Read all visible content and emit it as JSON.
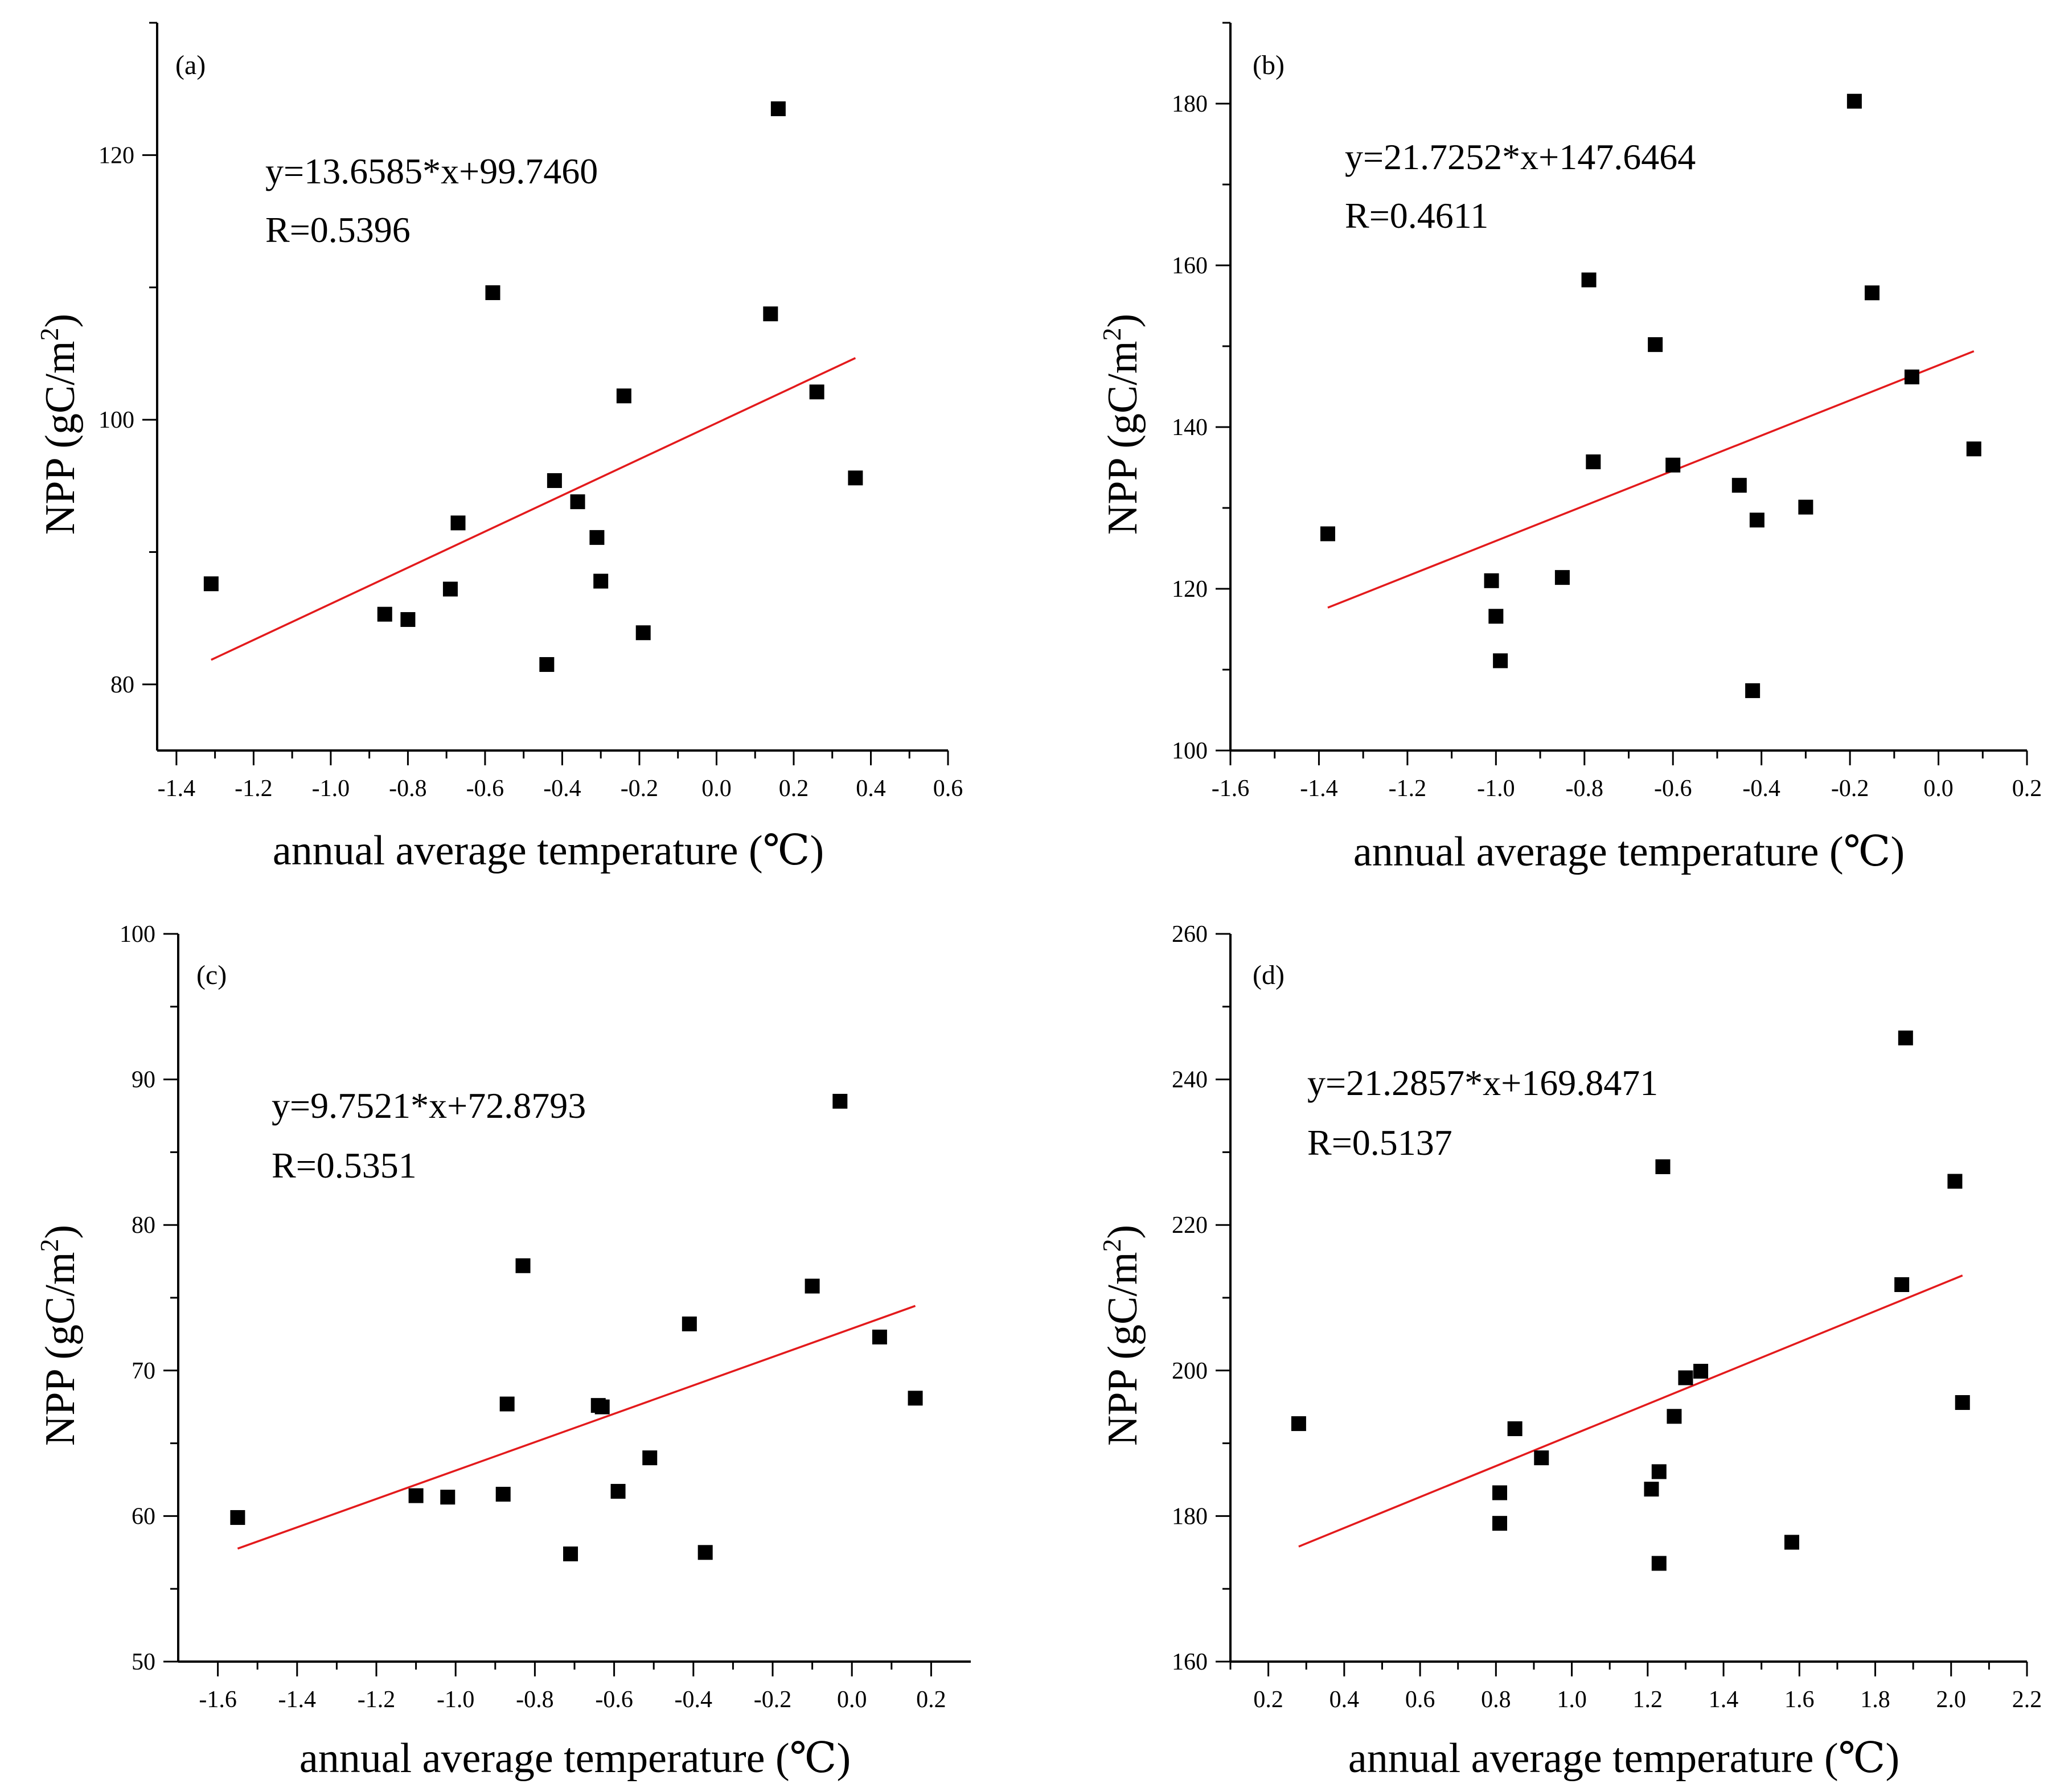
{
  "chart_data": [
    {
      "type": "scatter",
      "panel": "(a)",
      "xlabel": "annual average temperature (℃)",
      "ylabel": "NPP (gC/m2)",
      "ylabel_base": "NPP (gC/m",
      "ylabel_sup": "2",
      "ylabel_close": ")",
      "xlim": [
        -1.45,
        0.6
      ],
      "ylim": [
        75,
        130
      ],
      "xticks": [
        -1.4,
        -1.2,
        -1.0,
        -0.8,
        -0.6,
        -0.4,
        -0.2,
        0.0,
        0.2,
        0.4,
        0.6
      ],
      "xtick_labels": [
        "-1.4",
        "-1.2",
        "-1.0",
        "-0.8",
        "-0.6",
        "-0.4",
        "-0.2",
        "0.0",
        "0.2",
        "0.4",
        "0.6"
      ],
      "yticks": [
        80,
        100,
        120
      ],
      "ytick_labels": [
        "80",
        "100",
        "120"
      ],
      "equation": "y=13.6585*x+99.7460",
      "r_text": "R=0.5396",
      "fit": {
        "slope": 13.6585,
        "intercept": 99.746,
        "x_range": [
          -1.31,
          0.36
        ]
      },
      "points": [
        [
          -1.31,
          87.6
        ],
        [
          -0.86,
          85.3
        ],
        [
          -0.8,
          84.9
        ],
        [
          -0.69,
          87.2
        ],
        [
          -0.67,
          92.2
        ],
        [
          -0.58,
          109.6
        ],
        [
          -0.44,
          81.5
        ],
        [
          -0.42,
          95.4
        ],
        [
          -0.36,
          93.8
        ],
        [
          -0.31,
          91.1
        ],
        [
          -0.3,
          87.8
        ],
        [
          -0.24,
          101.8
        ],
        [
          -0.19,
          83.9
        ],
        [
          0.14,
          108.0
        ],
        [
          0.16,
          123.5
        ],
        [
          0.26,
          102.1
        ],
        [
          0.36,
          95.6
        ]
      ]
    },
    {
      "type": "scatter",
      "panel": "(b)",
      "xlabel": "annual average temperature (℃)",
      "ylabel": "NPP (gC/m2)",
      "ylabel_base": "NPP (gC/m",
      "ylabel_sup": "2",
      "ylabel_close": ")",
      "xlim": [
        -1.6,
        0.2
      ],
      "ylim": [
        100,
        190
      ],
      "xticks": [
        -1.6,
        -1.4,
        -1.2,
        -1.0,
        -0.8,
        -0.6,
        -0.4,
        -0.2,
        0.0,
        0.2
      ],
      "xtick_labels": [
        "-1.6",
        "-1.4",
        "-1.2",
        "-1.0",
        "-0.8",
        "-0.6",
        "-0.4",
        "-0.2",
        "0.0",
        "0.2"
      ],
      "yticks": [
        100,
        120,
        140,
        160,
        180
      ],
      "ytick_labels": [
        "100",
        "120",
        "140",
        "160",
        "180"
      ],
      "equation": "y=21.7252*x+147.6464",
      "r_text": "R=0.4611",
      "fit": {
        "slope": 21.7252,
        "intercept": 147.6464,
        "x_range": [
          -1.38,
          0.08
        ]
      },
      "points": [
        [
          -1.38,
          126.8
        ],
        [
          -1.01,
          121.0
        ],
        [
          -1.0,
          116.6
        ],
        [
          -0.99,
          111.1
        ],
        [
          -0.85,
          121.4
        ],
        [
          -0.79,
          158.2
        ],
        [
          -0.78,
          135.7
        ],
        [
          -0.64,
          150.2
        ],
        [
          -0.6,
          135.3
        ],
        [
          -0.45,
          132.8
        ],
        [
          -0.42,
          107.4
        ],
        [
          -0.41,
          128.5
        ],
        [
          -0.3,
          130.1
        ],
        [
          -0.19,
          180.3
        ],
        [
          -0.15,
          156.6
        ],
        [
          -0.06,
          146.2
        ],
        [
          0.08,
          137.3
        ]
      ]
    },
    {
      "type": "scatter",
      "panel": "(c)",
      "xlabel": "annual average temperature (℃)",
      "ylabel": "NPP (gC/m2)",
      "ylabel_base": "NPP (gC/m",
      "ylabel_sup": "2",
      "ylabel_close": ")",
      "xlim": [
        -1.7,
        0.3
      ],
      "ylim": [
        50,
        100
      ],
      "xticks": [
        -1.6,
        -1.4,
        -1.2,
        -1.0,
        -0.8,
        -0.6,
        -0.4,
        -0.2,
        0.0,
        0.2
      ],
      "xtick_labels": [
        "-1.6",
        "-1.4",
        "-1.2",
        "-1.0",
        "-0.8",
        "-0.6",
        "-0.4",
        "-0.2",
        "0.0",
        "0.2"
      ],
      "yticks": [
        50,
        60,
        70,
        80,
        90,
        100
      ],
      "ytick_labels": [
        "50",
        "60",
        "70",
        "80",
        "90",
        "100"
      ],
      "equation": "y=9.7521*x+72.8793",
      "r_text": "R=0.5351",
      "fit": {
        "slope": 9.7521,
        "intercept": 72.8793,
        "x_range": [
          -1.55,
          0.16
        ]
      },
      "points": [
        [
          -1.55,
          59.9
        ],
        [
          -1.1,
          61.4
        ],
        [
          -1.02,
          61.3
        ],
        [
          -0.88,
          61.5
        ],
        [
          -0.87,
          67.7
        ],
        [
          -0.83,
          77.2
        ],
        [
          -0.71,
          57.4
        ],
        [
          -0.64,
          67.6
        ],
        [
          -0.63,
          67.5
        ],
        [
          -0.59,
          61.7
        ],
        [
          -0.51,
          64.0
        ],
        [
          -0.41,
          73.2
        ],
        [
          -0.37,
          57.5
        ],
        [
          -0.1,
          75.8
        ],
        [
          -0.03,
          88.5
        ],
        [
          0.07,
          72.3
        ],
        [
          0.16,
          68.1
        ]
      ]
    },
    {
      "type": "scatter",
      "panel": "(d)",
      "xlabel": "annual average temperature  (℃)",
      "ylabel": "NPP (gC/m2)",
      "ylabel_base": "NPP (gC/m",
      "ylabel_sup": "2",
      "ylabel_close": ")",
      "xlim": [
        0.1,
        2.2
      ],
      "ylim": [
        160,
        260
      ],
      "xticks": [
        0.2,
        0.4,
        0.6,
        0.8,
        1.0,
        1.2,
        1.4,
        1.6,
        1.8,
        2.0,
        2.2
      ],
      "xtick_labels": [
        "0.2",
        "0.4",
        "0.6",
        "0.8",
        "1.0",
        "1.2",
        "1.4",
        "1.6",
        "1.8",
        "2.0",
        "2.2"
      ],
      "yticks": [
        160,
        180,
        200,
        220,
        240,
        260
      ],
      "ytick_labels": [
        "160",
        "180",
        "200",
        "220",
        "240",
        "260"
      ],
      "equation": "y=21.2857*x+169.8471",
      "r_text": "R=0.5137",
      "fit": {
        "slope": 21.2857,
        "intercept": 169.8471,
        "x_range": [
          0.28,
          2.03
        ]
      },
      "points": [
        [
          0.28,
          192.7
        ],
        [
          0.81,
          183.2
        ],
        [
          0.81,
          179.0
        ],
        [
          0.85,
          192.0
        ],
        [
          0.92,
          188.0
        ],
        [
          1.21,
          183.7
        ],
        [
          1.23,
          186.1
        ],
        [
          1.23,
          173.5
        ],
        [
          1.24,
          228.0
        ],
        [
          1.27,
          193.7
        ],
        [
          1.3,
          199.0
        ],
        [
          1.34,
          199.9
        ],
        [
          1.58,
          176.4
        ],
        [
          1.87,
          211.8
        ],
        [
          1.88,
          245.7
        ],
        [
          2.01,
          226.0
        ],
        [
          2.03,
          195.6
        ]
      ]
    }
  ]
}
